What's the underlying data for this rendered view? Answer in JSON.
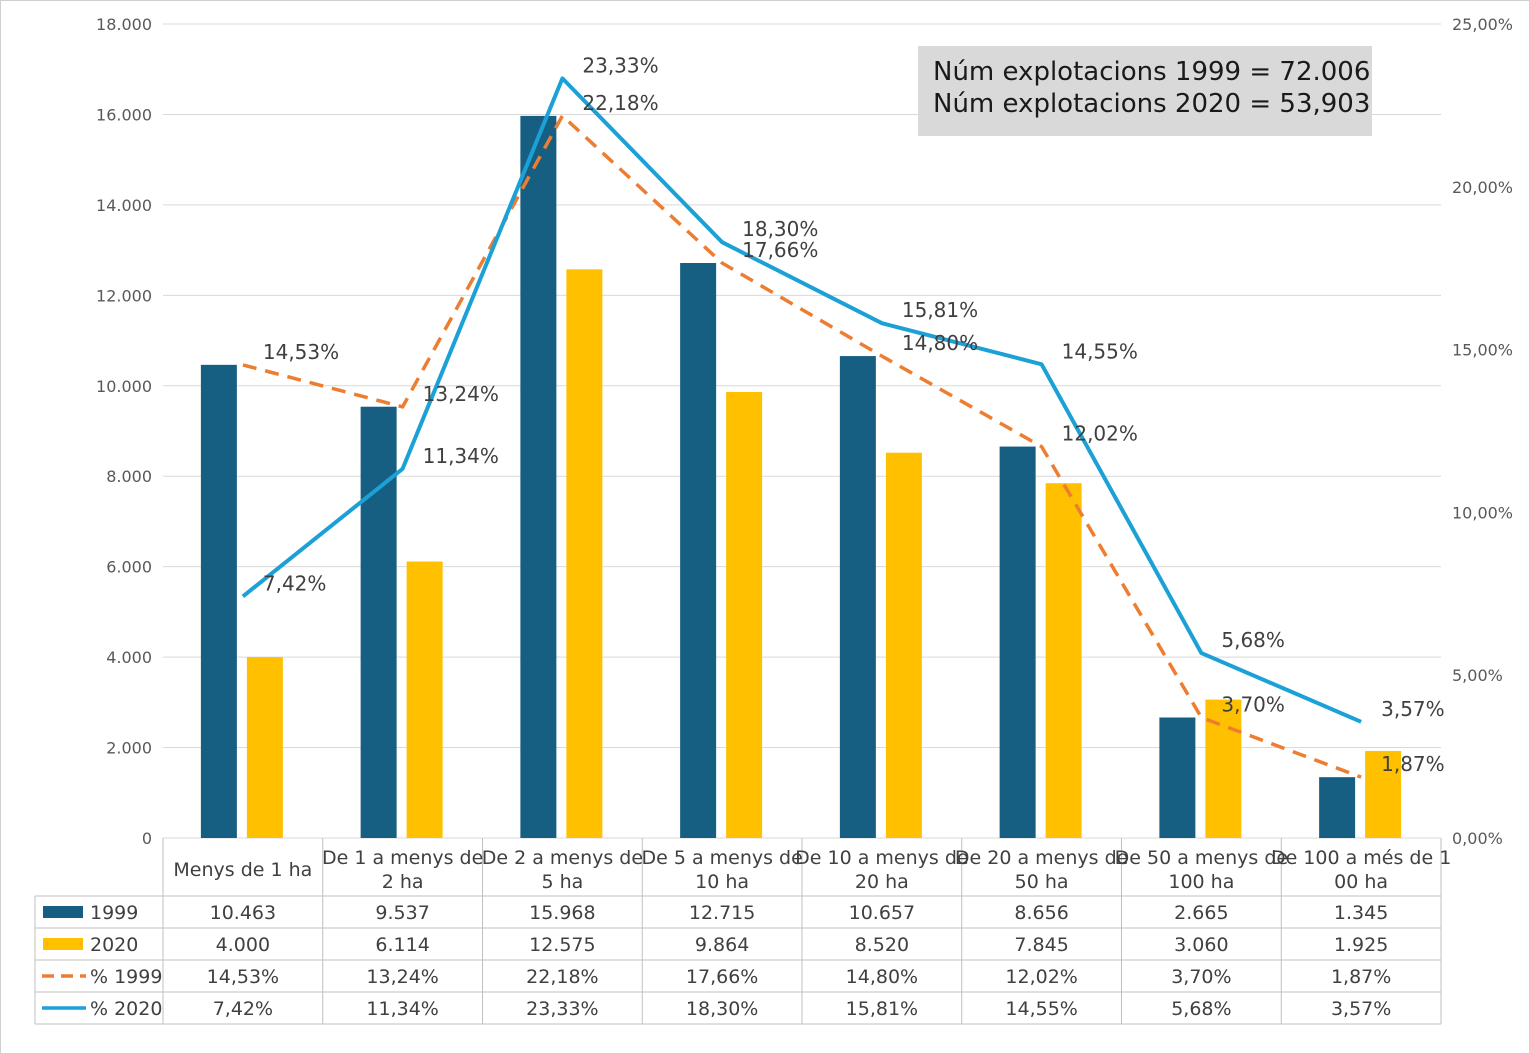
{
  "chart_data": {
    "type": "bar",
    "categories": [
      [
        "Menys de 1 ha"
      ],
      [
        "De 1 a menys de",
        "2 ha"
      ],
      [
        "De 2 a menys de",
        "5 ha"
      ],
      [
        "De 5 a menys de",
        "10 ha"
      ],
      [
        "De 10 a menys de",
        "20 ha"
      ],
      [
        "De 20 a menys de",
        "50 ha"
      ],
      [
        "De 50 a menys de",
        "100 ha"
      ],
      [
        "De 100 a més de 1",
        "00 ha"
      ]
    ],
    "series": [
      {
        "name": "1999",
        "kind": "bar",
        "axis": "left",
        "color": "#175f82",
        "values": [
          10463,
          9537,
          15968,
          12715,
          10657,
          8656,
          2665,
          1345
        ],
        "table_values": [
          "10.463",
          "9.537",
          "15.968",
          "12.715",
          "10.657",
          "8.656",
          "2.665",
          "1.345"
        ]
      },
      {
        "name": "2020",
        "kind": "bar",
        "axis": "left",
        "color": "#ffc000",
        "values": [
          4000,
          6114,
          12575,
          9864,
          8520,
          7845,
          3060,
          1925
        ],
        "table_values": [
          "4.000",
          "6.114",
          "12.575",
          "9.864",
          "8.520",
          "7.845",
          "3.060",
          "1.925"
        ]
      },
      {
        "name": "% 1999",
        "kind": "line-dashed",
        "axis": "right",
        "color": "#ed7d31",
        "values": [
          14.53,
          13.24,
          22.18,
          17.66,
          14.8,
          12.02,
          3.7,
          1.87
        ],
        "labels": [
          "14,53%",
          "13,24%",
          "22,18%",
          "17,66%",
          "14,80%",
          "12,02%",
          "3,70%",
          "1,87%"
        ]
      },
      {
        "name": "% 2020",
        "kind": "line",
        "axis": "right",
        "color": "#1ba1d5",
        "values": [
          7.42,
          11.34,
          23.33,
          18.3,
          15.81,
          14.55,
          5.68,
          3.57
        ],
        "labels": [
          "7,42%",
          "11,34%",
          "23,33%",
          "18,30%",
          "15,81%",
          "14,55%",
          "5,68%",
          "3,57%"
        ]
      }
    ],
    "y_left": {
      "min": 0,
      "max": 18000,
      "step": 2000,
      "ticks": [
        "0",
        "2.000",
        "4.000",
        "6.000",
        "8.000",
        "10.000",
        "12.000",
        "14.000",
        "16.000",
        "18.000"
      ]
    },
    "y_right": {
      "min": 0,
      "max": 25,
      "step": 5,
      "ticks": [
        "0,00%",
        "5,00%",
        "10,00%",
        "15,00%",
        "20,00%",
        "25,00%"
      ]
    },
    "grid": true,
    "legend": "data-table",
    "annotation": [
      "Núm explotacions 1999 = 72.006",
      "Núm explotacions 2020 = 53,903"
    ]
  }
}
